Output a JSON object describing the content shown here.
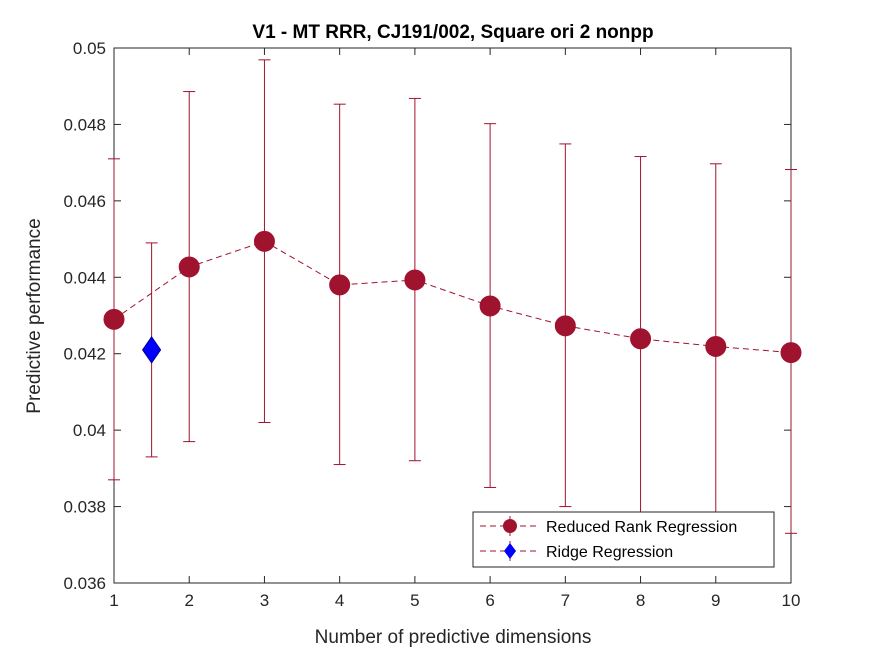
{
  "chart_data": {
    "type": "line",
    "title": "V1 - MT RRR, CJ191/002, Square ori 2 nonpp",
    "xlabel": "Number of predictive dimensions",
    "ylabel": "Predictive performance",
    "xlim": [
      1,
      10
    ],
    "ylim": [
      0.036,
      0.05
    ],
    "xticks": [
      "1",
      "2",
      "3",
      "4",
      "5",
      "6",
      "7",
      "8",
      "9",
      "10"
    ],
    "yticks": [
      "0.036",
      "0.038",
      "0.04",
      "0.042",
      "0.044",
      "0.046",
      "0.048",
      "0.05"
    ],
    "grid": false,
    "legend_position": "bottom-right",
    "series": [
      {
        "name": "Reduced Rank Regression",
        "color": "#a0132e",
        "marker": "circle",
        "line_style": "dashed",
        "x": [
          1,
          2,
          3,
          4,
          5,
          6,
          7,
          8,
          9,
          10
        ],
        "y": [
          0.0429,
          0.04427,
          0.04494,
          0.0438,
          0.04393,
          0.04325,
          0.04273,
          0.04239,
          0.04219,
          0.04203
        ],
        "err_low": [
          0.0387,
          0.0397,
          0.0402,
          0.0391,
          0.0392,
          0.0385,
          0.038,
          0.0377,
          0.0374,
          0.0373
        ],
        "err_high": [
          0.0471,
          0.04886,
          0.04969,
          0.04853,
          0.04868,
          0.04802,
          0.04749,
          0.04716,
          0.04697,
          0.04682
        ]
      },
      {
        "name": "Ridge Regression",
        "color": "#0000ff",
        "marker": "diamond",
        "line_style": "dashed",
        "x": [
          1.5
        ],
        "y": [
          0.0421
        ],
        "err_low": [
          0.0393
        ],
        "err_high": [
          0.0449
        ]
      }
    ]
  }
}
